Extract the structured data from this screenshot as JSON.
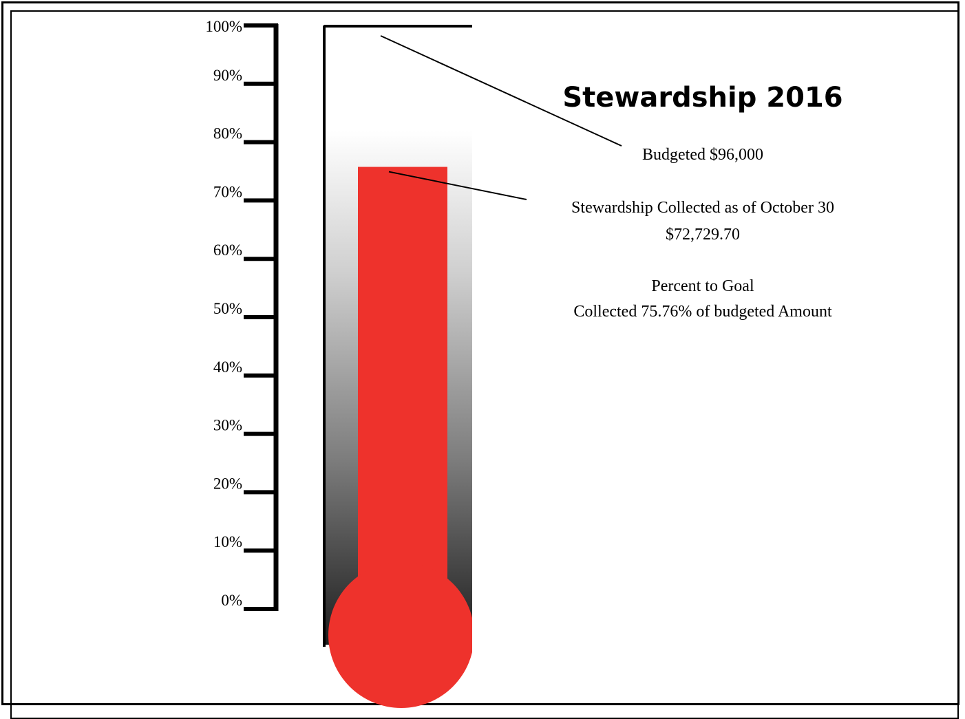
{
  "chart_data": {
    "type": "thermometer",
    "title": "Stewardship 2016",
    "goal_label": "Budgeted $96,000",
    "collected_label_line1": "Stewardship Collected as of October 30",
    "collected_label_line2": "$72,729.70",
    "percent_heading": "Percent to Goal",
    "percent_text": "Collected 75.76% of budgeted Amount",
    "value_percent": 75.76,
    "ylim": [
      0,
      100
    ],
    "ticks": [
      {
        "value": 0,
        "label": "0%"
      },
      {
        "value": 10,
        "label": "10%"
      },
      {
        "value": 20,
        "label": "20%"
      },
      {
        "value": 30,
        "label": "30%"
      },
      {
        "value": 40,
        "label": "40%"
      },
      {
        "value": 50,
        "label": "50%"
      },
      {
        "value": 60,
        "label": "60%"
      },
      {
        "value": 70,
        "label": "70%"
      },
      {
        "value": 80,
        "label": "80%"
      },
      {
        "value": 90,
        "label": "90%"
      },
      {
        "value": 100,
        "label": "100%"
      }
    ],
    "colors": {
      "mercury": "#ee322c",
      "tube_dark": "#1a1a1a",
      "tube_light": "#ffffff",
      "outline": "#000000"
    }
  }
}
